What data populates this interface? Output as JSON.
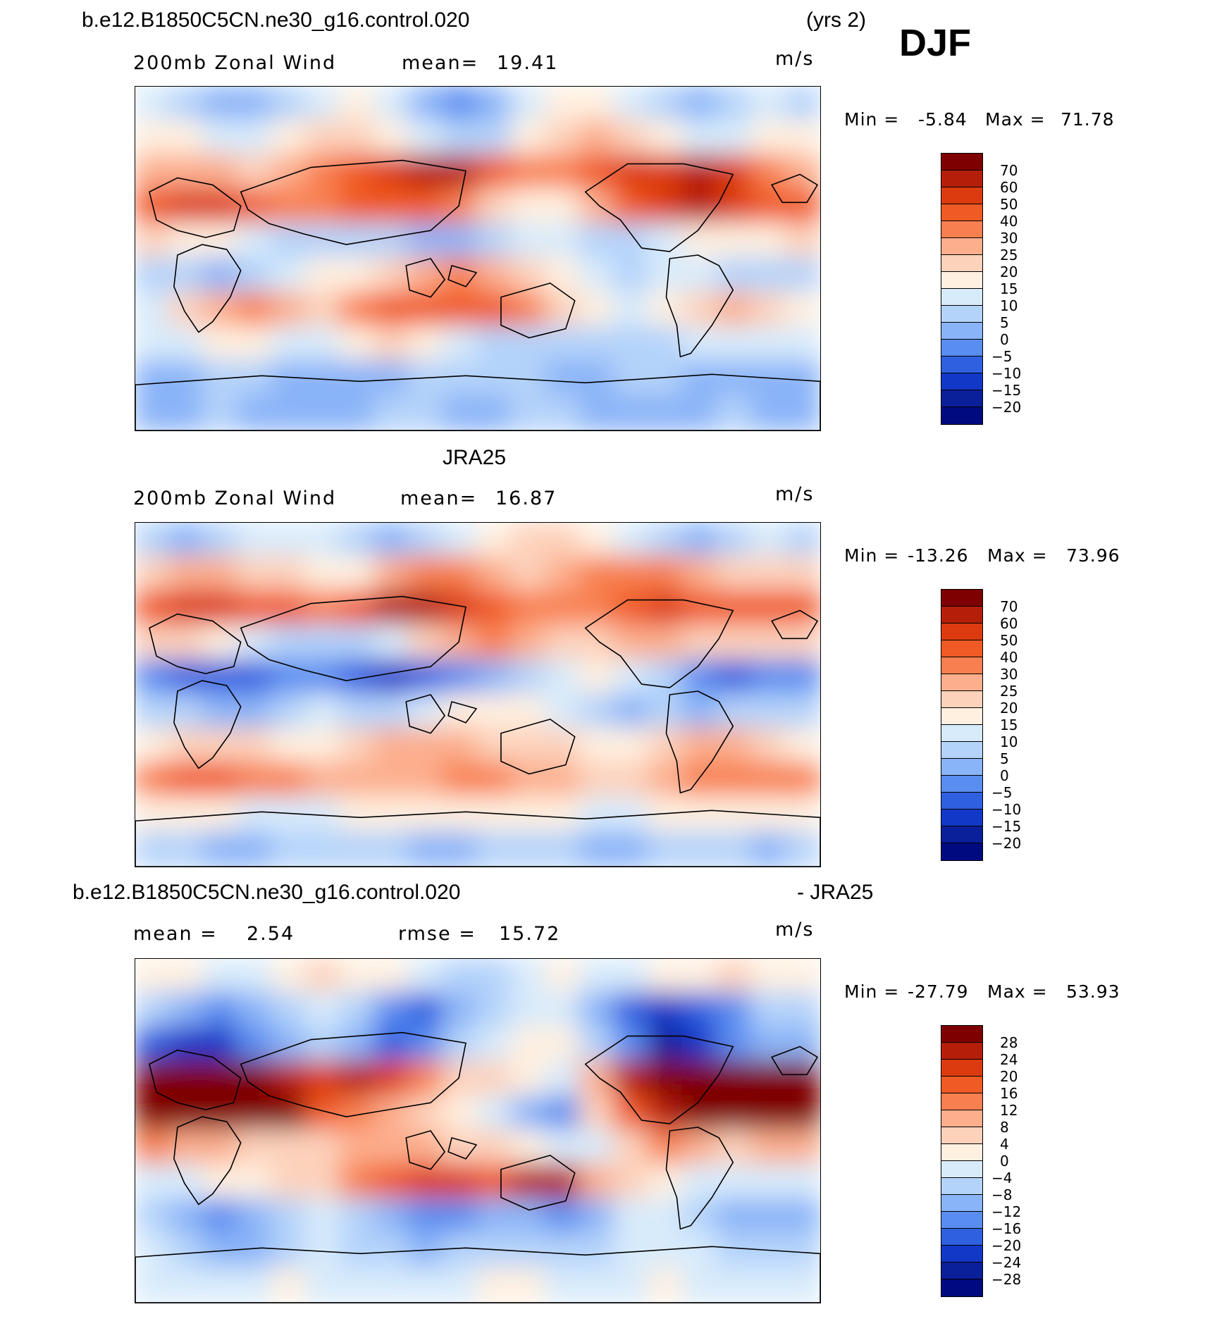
{
  "figure": {
    "case_name": "b.e12.B1850C5CN.ne30_g16.control.020",
    "years": "(yrs 2)",
    "season": "DJF",
    "obs_name": "JRA25",
    "diff_title_left": "b.e12.B1850C5CN.ne30_g16.control.020",
    "diff_title_right": "- JRA25"
  },
  "panels": [
    {
      "id": "model",
      "variable": "200mb Zonal Wind",
      "stat1_label": "mean=",
      "stat1_value": "19.41",
      "stat2_label": "",
      "stat2_value": "",
      "units": "m/s",
      "min_label": "Min =",
      "min_value": "-5.84",
      "max_label": "Max =",
      "max_value": "71.78"
    },
    {
      "id": "obs",
      "variable": "200mb Zonal Wind",
      "stat1_label": "mean=",
      "stat1_value": "16.87",
      "stat2_label": "",
      "stat2_value": "",
      "units": "m/s",
      "min_label": "Min =",
      "min_value": "-13.26",
      "max_label": "Max =",
      "max_value": "73.96"
    },
    {
      "id": "diff",
      "variable": "",
      "stat1_label": "mean =",
      "stat1_value": "2.54",
      "stat2_label": "rmse =",
      "stat2_value": "15.72",
      "units": "m/s",
      "min_label": "Min =",
      "min_value": "-27.79",
      "max_label": "Max =",
      "max_value": "53.93"
    }
  ],
  "chart_data": [
    {
      "type": "heatmap",
      "title": "200mb Zonal Wind (model)",
      "units": "m/s",
      "mean": 19.41,
      "min": -5.84,
      "max": 71.78,
      "colorbar_levels": [
        "70",
        "60",
        "50",
        "40",
        "30",
        "25",
        "20",
        "15",
        "10",
        "5",
        "0",
        "-5",
        "-10",
        "-15",
        "-20"
      ],
      "colorbar_colors": [
        "#7f0000",
        "#b51f0a",
        "#dc3b10",
        "#f05a24",
        "#f88050",
        "#fcae8d",
        "#fdd2bb",
        "#fff0e0",
        "#d8ebfb",
        "#b4d3fa",
        "#8ab4f8",
        "#5a8df0",
        "#2e60e0",
        "#1238c8",
        "#0a1f9a",
        "#000a80"
      ],
      "rows": [
        [
          10,
          5,
          0,
          0,
          5,
          10,
          15,
          10,
          0,
          -5,
          0,
          10,
          15,
          15,
          10,
          5,
          0,
          5,
          10,
          5
        ],
        [
          15,
          15,
          10,
          10,
          15,
          20,
          20,
          15,
          10,
          5,
          5,
          15,
          20,
          25,
          20,
          15,
          10,
          10,
          15,
          15
        ],
        [
          25,
          25,
          25,
          20,
          25,
          30,
          40,
          55,
          65,
          60,
          45,
          35,
          35,
          40,
          50,
          55,
          60,
          50,
          35,
          25
        ],
        [
          45,
          50,
          50,
          40,
          35,
          35,
          40,
          45,
          40,
          30,
          20,
          15,
          15,
          25,
          40,
          55,
          60,
          55,
          45,
          40
        ],
        [
          20,
          15,
          15,
          10,
          5,
          5,
          5,
          5,
          0,
          0,
          5,
          10,
          10,
          5,
          5,
          10,
          15,
          15,
          15,
          20
        ],
        [
          5,
          5,
          0,
          5,
          10,
          15,
          15,
          20,
          25,
          30,
          25,
          20,
          15,
          10,
          5,
          10,
          10,
          5,
          5,
          5
        ],
        [
          10,
          20,
          25,
          30,
          25,
          20,
          30,
          40,
          45,
          45,
          40,
          30,
          20,
          15,
          10,
          15,
          20,
          25,
          20,
          15
        ],
        [
          10,
          10,
          15,
          15,
          10,
          10,
          15,
          20,
          15,
          10,
          5,
          5,
          5,
          5,
          5,
          5,
          10,
          10,
          10,
          10
        ],
        [
          0,
          0,
          5,
          5,
          0,
          0,
          0,
          0,
          5,
          5,
          5,
          5,
          0,
          0,
          5,
          5,
          0,
          0,
          0,
          0
        ],
        [
          0,
          0,
          5,
          0,
          0,
          0,
          0,
          5,
          5,
          0,
          0,
          5,
          5,
          0,
          0,
          0,
          0,
          5,
          0,
          0
        ]
      ]
    },
    {
      "type": "heatmap",
      "title": "200mb Zonal Wind (JRA25)",
      "units": "m/s",
      "mean": 16.87,
      "min": -13.26,
      "max": 73.96,
      "colorbar_levels": [
        "70",
        "60",
        "50",
        "40",
        "30",
        "25",
        "20",
        "15",
        "10",
        "5",
        "0",
        "-5",
        "-10",
        "-15",
        "-20"
      ],
      "colorbar_colors": [
        "#7f0000",
        "#b51f0a",
        "#dc3b10",
        "#f05a24",
        "#f88050",
        "#fcae8d",
        "#fdd2bb",
        "#fff0e0",
        "#d8ebfb",
        "#b4d3fa",
        "#8ab4f8",
        "#5a8df0",
        "#2e60e0",
        "#1238c8",
        "#0a1f9a",
        "#000a80"
      ],
      "rows": [
        [
          5,
          0,
          5,
          10,
          10,
          10,
          5,
          0,
          5,
          10,
          15,
          20,
          20,
          15,
          10,
          5,
          0,
          5,
          10,
          5
        ],
        [
          20,
          25,
          25,
          20,
          20,
          15,
          15,
          25,
          30,
          30,
          25,
          20,
          25,
          30,
          35,
          30,
          25,
          20,
          20,
          20
        ],
        [
          45,
          50,
          50,
          45,
          40,
          35,
          45,
          60,
          65,
          55,
          45,
          35,
          30,
          35,
          45,
          55,
          45,
          40,
          40,
          45
        ],
        [
          20,
          20,
          15,
          10,
          5,
          5,
          5,
          10,
          20,
          25,
          30,
          25,
          20,
          20,
          25,
          25,
          20,
          20,
          20,
          20
        ],
        [
          -5,
          -10,
          -10,
          -10,
          -5,
          -5,
          -10,
          -15,
          -10,
          -5,
          0,
          5,
          10,
          15,
          10,
          5,
          -5,
          -10,
          -5,
          -5
        ],
        [
          5,
          5,
          0,
          0,
          5,
          10,
          5,
          5,
          10,
          15,
          15,
          15,
          10,
          5,
          0,
          5,
          0,
          5,
          5,
          5
        ],
        [
          15,
          20,
          20,
          20,
          15,
          15,
          20,
          25,
          25,
          25,
          20,
          20,
          20,
          15,
          15,
          20,
          25,
          25,
          20,
          15
        ],
        [
          35,
          40,
          40,
          35,
          30,
          25,
          25,
          25,
          25,
          30,
          30,
          25,
          25,
          20,
          20,
          25,
          30,
          35,
          35,
          35
        ],
        [
          15,
          15,
          15,
          10,
          10,
          10,
          15,
          15,
          15,
          15,
          15,
          15,
          15,
          10,
          10,
          15,
          15,
          15,
          15,
          15
        ],
        [
          5,
          5,
          0,
          0,
          5,
          5,
          5,
          5,
          0,
          0,
          5,
          5,
          5,
          0,
          0,
          5,
          5,
          5,
          0,
          5
        ]
      ]
    },
    {
      "type": "heatmap",
      "title": "b.e12.B1850C5CN.ne30_g16.control.020 - JRA25",
      "units": "m/s",
      "mean": 2.54,
      "rmse": 15.72,
      "min": -27.79,
      "max": 53.93,
      "colorbar_levels": [
        "28",
        "24",
        "20",
        "16",
        "12",
        "8",
        "4",
        "0",
        "-4",
        "-8",
        "-12",
        "-16",
        "-20",
        "-24",
        "-28"
      ],
      "colorbar_colors": [
        "#7f0000",
        "#b51f0a",
        "#dc3b10",
        "#f05a24",
        "#f88050",
        "#fcae8d",
        "#fdd2bb",
        "#fff0e0",
        "#d8ebfb",
        "#b4d3fa",
        "#8ab4f8",
        "#5a8df0",
        "#2e60e0",
        "#1238c8",
        "#0a1f9a",
        "#000a80"
      ],
      "rows": [
        [
          0,
          2,
          -2,
          -4,
          0,
          4,
          2,
          0,
          -4,
          -8,
          -6,
          -2,
          0,
          -2,
          -4,
          0,
          2,
          4,
          0,
          0
        ],
        [
          -8,
          -12,
          -16,
          -12,
          -8,
          -4,
          -8,
          -16,
          -18,
          -12,
          -6,
          -2,
          -4,
          -10,
          -18,
          -24,
          -20,
          -14,
          -8,
          -6
        ],
        [
          -20,
          -24,
          -22,
          -16,
          -12,
          -8,
          -12,
          -18,
          -14,
          -8,
          -2,
          2,
          0,
          -8,
          -16,
          -26,
          -22,
          -14,
          -10,
          -12
        ],
        [
          30,
          32,
          32,
          30,
          26,
          20,
          24,
          20,
          12,
          6,
          4,
          2,
          -2,
          10,
          24,
          32,
          34,
          32,
          30,
          30
        ],
        [
          34,
          36,
          36,
          34,
          30,
          18,
          12,
          8,
          4,
          2,
          -4,
          -10,
          -16,
          4,
          18,
          26,
          30,
          32,
          32,
          32
        ],
        [
          12,
          10,
          8,
          6,
          4,
          6,
          8,
          10,
          8,
          6,
          4,
          0,
          -4,
          -2,
          6,
          12,
          8,
          6,
          8,
          10
        ],
        [
          -4,
          -2,
          0,
          2,
          4,
          6,
          12,
          16,
          20,
          22,
          18,
          24,
          26,
          10,
          4,
          0,
          -2,
          -4,
          -4,
          -4
        ],
        [
          -8,
          -12,
          -14,
          -12,
          -8,
          -4,
          -8,
          -12,
          -16,
          -14,
          -10,
          -12,
          -14,
          -10,
          -4,
          -4,
          -6,
          -10,
          -12,
          -10
        ],
        [
          -4,
          -8,
          -12,
          -10,
          -6,
          -4,
          -6,
          -8,
          -10,
          -8,
          -6,
          -8,
          -8,
          -6,
          -4,
          -2,
          -4,
          -6,
          -8,
          -6
        ],
        [
          -2,
          -4,
          -4,
          -2,
          0,
          -2,
          -4,
          -4,
          -4,
          -2,
          0,
          0,
          -2,
          -4,
          -2,
          0,
          -2,
          -2,
          -4,
          -2
        ]
      ]
    }
  ]
}
